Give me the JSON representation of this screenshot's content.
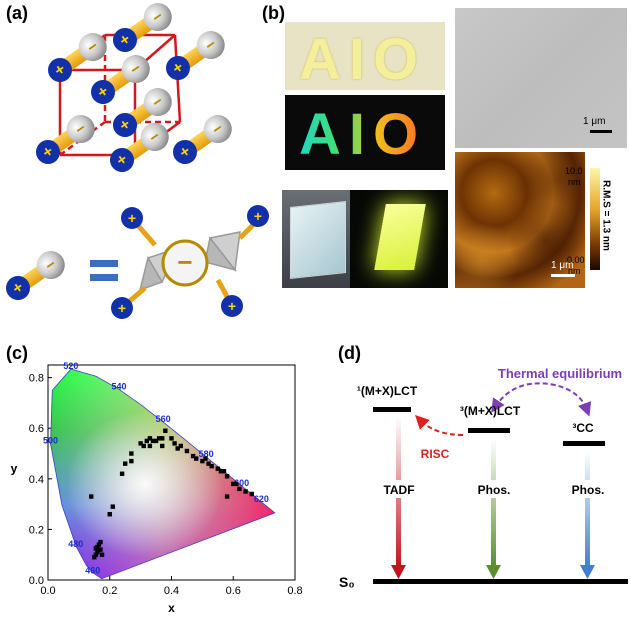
{
  "panels": {
    "a": {
      "label": "(a)",
      "minus": "−",
      "plus": "+",
      "equals": "="
    },
    "b": {
      "label": "(b)",
      "photo_text": "AIO",
      "sem_scale": "1 μm",
      "afm_scale": "1 μm",
      "colorbar_max": "10.0",
      "colorbar_max_unit": "nm",
      "colorbar_min": "0.00",
      "colorbar_min_unit": "nm",
      "rms": "R.M.S = 1.3 nm"
    },
    "c": {
      "label": "(c)"
    },
    "d": {
      "label": "(d)",
      "thermal": "Thermal equilibrium",
      "level1": "¹(M+X)LCT",
      "level2": "³(M+X)LCT",
      "level3": "³CC",
      "risc": "RISC",
      "arrow1": "TADF",
      "arrow2": "Phos.",
      "arrow3": "Phos.",
      "ground": "S₀",
      "colors": {
        "tadf": "#c0151b",
        "phos2": "#5a8f2f",
        "phos3": "#3f7fcf",
        "thermal": "#7a3fb4",
        "risc": "#e02020"
      }
    }
  },
  "chart_data": {
    "type": "scatter",
    "xlabel": "x",
    "ylabel": "y",
    "xlim": [
      0.0,
      0.8
    ],
    "ylim": [
      0.0,
      0.85
    ],
    "x_ticks": [
      "0.0",
      "0.2",
      "0.4",
      "0.6",
      "0.8"
    ],
    "y_ticks": [
      "0.0",
      "0.2",
      "0.4",
      "0.6",
      "0.8"
    ],
    "wavelength_labels": [
      {
        "text": "460",
        "x": 0.145,
        "y": 0.025
      },
      {
        "text": "480",
        "x": 0.09,
        "y": 0.13
      },
      {
        "text": "500",
        "x": 0.008,
        "y": 0.54
      },
      {
        "text": "520",
        "x": 0.074,
        "y": 0.834
      },
      {
        "text": "540",
        "x": 0.23,
        "y": 0.754
      },
      {
        "text": "560",
        "x": 0.373,
        "y": 0.624
      },
      {
        "text": "580",
        "x": 0.512,
        "y": 0.487
      },
      {
        "text": "600",
        "x": 0.627,
        "y": 0.372
      },
      {
        "text": "620",
        "x": 0.691,
        "y": 0.308
      }
    ],
    "points": [
      [
        0.14,
        0.33
      ],
      [
        0.15,
        0.09
      ],
      [
        0.155,
        0.1
      ],
      [
        0.16,
        0.11
      ],
      [
        0.16,
        0.13
      ],
      [
        0.17,
        0.12
      ],
      [
        0.165,
        0.14
      ],
      [
        0.17,
        0.15
      ],
      [
        0.175,
        0.1
      ],
      [
        0.155,
        0.125
      ],
      [
        0.2,
        0.26
      ],
      [
        0.21,
        0.29
      ],
      [
        0.24,
        0.42
      ],
      [
        0.25,
        0.46
      ],
      [
        0.27,
        0.5
      ],
      [
        0.27,
        0.47
      ],
      [
        0.3,
        0.54
      ],
      [
        0.31,
        0.53
      ],
      [
        0.32,
        0.55
      ],
      [
        0.33,
        0.56
      ],
      [
        0.33,
        0.53
      ],
      [
        0.34,
        0.55
      ],
      [
        0.35,
        0.55
      ],
      [
        0.36,
        0.56
      ],
      [
        0.37,
        0.56
      ],
      [
        0.38,
        0.59
      ],
      [
        0.37,
        0.53
      ],
      [
        0.4,
        0.56
      ],
      [
        0.41,
        0.54
      ],
      [
        0.42,
        0.52
      ],
      [
        0.43,
        0.53
      ],
      [
        0.45,
        0.51
      ],
      [
        0.47,
        0.49
      ],
      [
        0.48,
        0.48
      ],
      [
        0.5,
        0.47
      ],
      [
        0.51,
        0.48
      ],
      [
        0.52,
        0.46
      ],
      [
        0.53,
        0.45
      ],
      [
        0.55,
        0.44
      ],
      [
        0.56,
        0.43
      ],
      [
        0.57,
        0.43
      ],
      [
        0.58,
        0.41
      ],
      [
        0.6,
        0.38
      ],
      [
        0.61,
        0.38
      ],
      [
        0.62,
        0.36
      ],
      [
        0.64,
        0.35
      ],
      [
        0.66,
        0.34
      ],
      [
        0.58,
        0.33
      ]
    ]
  }
}
